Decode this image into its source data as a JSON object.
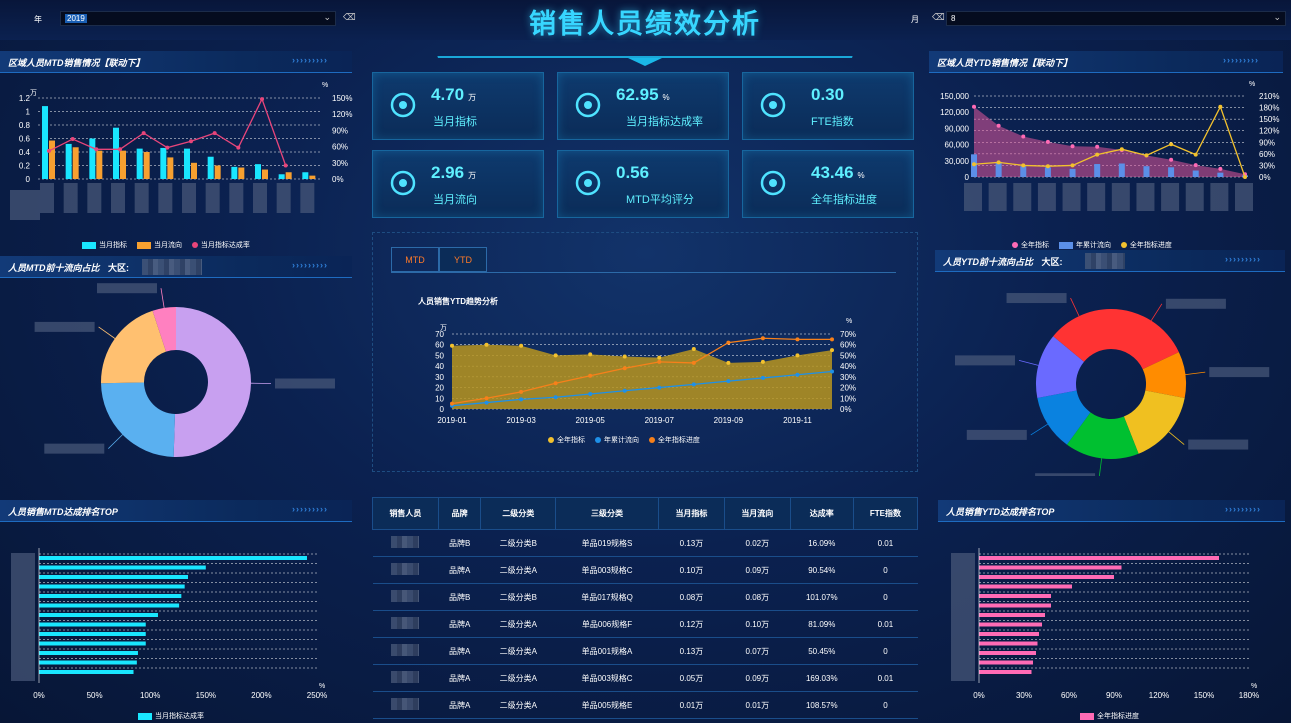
{
  "header": {
    "title": "销售人员绩效分析",
    "year_label": "年",
    "year_value": "2019",
    "month_label": "月",
    "month_value": "8"
  },
  "panels": {
    "left_mtd_region": "区域人员MTD销售情况【联动下】",
    "left_mtd_top10": "人员MTD前十流向占比",
    "left_mtd_top10_region": "大区:",
    "left_mtd_rank": "人员销售MTD达成排名TOP",
    "right_ytd_region": "区域人员YTD销售情况【联动下】",
    "right_ytd_top10": "人员YTD前十流向占比",
    "right_ytd_top10_region": "大区:",
    "right_ytd_rank": "人员销售YTD达成排名TOP",
    "arrows": "›››››››››"
  },
  "kpis": [
    {
      "value": "4.70",
      "unit": "万",
      "label": "当月指标",
      "icon": "clipboard-icon"
    },
    {
      "value": "62.95",
      "unit": "%",
      "label": "当月指标达成率",
      "icon": "percent-icon"
    },
    {
      "value": "0.30",
      "unit": "",
      "label": "FTE指数",
      "icon": "cube-icon"
    },
    {
      "value": "2.96",
      "unit": "万",
      "label": "当月流向",
      "icon": "bar-growth-icon"
    },
    {
      "value": "0.56",
      "unit": "",
      "label": "MTD平均评分",
      "icon": "molecule-icon"
    },
    {
      "value": "43.46",
      "unit": "%",
      "label": "全年指标进度",
      "icon": "atom-icon"
    }
  ],
  "tabs": {
    "mtd": "MTD",
    "ytd": "YTD"
  },
  "legends": {
    "mtd_bar": [
      "当月指标",
      "当月流向",
      "当月指标达成率"
    ],
    "ytd_bar": [
      "全年指标",
      "年累计流向",
      "全年指标进度"
    ],
    "trend": [
      "全年指标",
      "年累计流向",
      "全年指标进度"
    ],
    "mtd_rank": "当月指标达成率",
    "ytd_rank": "全年指标进度"
  },
  "colors": {
    "cyan": "#19e6ff",
    "orange": "#f7a030",
    "pink": "#e8457a",
    "gold": "#f2c12e",
    "blue": "#1e90e8",
    "magenta": "#ff6bb5",
    "accent": "#37d6ff"
  },
  "table": {
    "columns": [
      "销售人员",
      "品牌",
      "二级分类",
      "三级分类",
      "当月指标",
      "当月流向",
      "达成率",
      "FTE指数"
    ],
    "rows": [
      [
        "",
        "品牌B",
        "二级分类B",
        "单品019规格S",
        "0.13万",
        "0.02万",
        "16.09%",
        "0.01"
      ],
      [
        "",
        "品牌A",
        "二级分类A",
        "单品003规格C",
        "0.10万",
        "0.09万",
        "90.54%",
        "0"
      ],
      [
        "",
        "品牌B",
        "二级分类B",
        "单品017规格Q",
        "0.08万",
        "0.08万",
        "101.07%",
        "0"
      ],
      [
        "",
        "品牌A",
        "二级分类A",
        "单品006规格F",
        "0.12万",
        "0.10万",
        "81.09%",
        "0.01"
      ],
      [
        "",
        "品牌A",
        "二级分类A",
        "单品001规格A",
        "0.13万",
        "0.07万",
        "50.45%",
        "0"
      ],
      [
        "",
        "品牌A",
        "二级分类A",
        "单品003规格C",
        "0.05万",
        "0.09万",
        "169.03%",
        "0.01"
      ],
      [
        "",
        "品牌A",
        "二级分类A",
        "单品005规格E",
        "0.01万",
        "0.01万",
        "108.57%",
        "0"
      ]
    ]
  },
  "chart_data": [
    {
      "id": "mtd-region",
      "type": "bar",
      "ylabel_left": "万",
      "ylabel_right": "%",
      "y_ticks": [
        "0",
        "0.2",
        "0.4",
        "0.6",
        "0.8",
        "1",
        "1.2"
      ],
      "y2_ticks": [
        "0%",
        "30%",
        "60%",
        "90%",
        "120%",
        "150%"
      ],
      "series": [
        {
          "name": "当月指标",
          "values": [
            1.08,
            0.52,
            0.6,
            0.76,
            0.45,
            0.46,
            0.45,
            0.33,
            0.18,
            0.22,
            0.07,
            0.1
          ]
        },
        {
          "name": "当月流向",
          "values": [
            0.57,
            0.47,
            0.42,
            0.42,
            0.4,
            0.32,
            0.24,
            0.2,
            0.17,
            0.14,
            0.1,
            0.05
          ]
        },
        {
          "name": "当月指标达成率",
          "values": [
            52,
            74,
            55,
            55,
            85,
            58,
            70,
            85,
            58,
            148,
            25,
            null
          ]
        }
      ]
    },
    {
      "id": "ytd-region",
      "type": "bar",
      "y_ticks": [
        "0",
        "30,000",
        "60,000",
        "90,000",
        "120,000",
        "150,000"
      ],
      "y2_ticks": [
        "0%",
        "30%",
        "60%",
        "90%",
        "120%",
        "150%",
        "180%",
        "210%"
      ],
      "ylabel_right": "%",
      "series": [
        {
          "name": "全年指标",
          "values": [
            130000,
            95000,
            75000,
            65000,
            57000,
            56000,
            50000,
            40000,
            32000,
            22000,
            15000,
            5000
          ]
        },
        {
          "name": "年累计流向",
          "values": [
            42000,
            28000,
            20000,
            18000,
            15000,
            24000,
            25000,
            20000,
            18000,
            12000,
            8000,
            3000
          ]
        },
        {
          "name": "全年指标进度",
          "values": [
            33,
            38,
            30,
            28,
            30,
            58,
            72,
            56,
            85,
            58,
            182,
            0
          ]
        }
      ]
    },
    {
      "id": "ytd-trend",
      "type": "line",
      "title": "人员销售YTD趋势分析",
      "ylabel_left": "万",
      "ylabel_right": "%",
      "x": [
        "2019-01",
        "2019-02",
        "2019-03",
        "2019-04",
        "2019-05",
        "2019-06",
        "2019-07",
        "2019-08",
        "2019-09",
        "2019-10",
        "2019-11",
        "2019-12"
      ],
      "x_ticks": [
        "2019-01",
        "2019-03",
        "2019-05",
        "2019-07",
        "2019-09",
        "2019-11"
      ],
      "y_ticks": [
        "0",
        "10",
        "20",
        "30",
        "40",
        "50",
        "60",
        "70"
      ],
      "y2_ticks": [
        "0%",
        "10%",
        "20%",
        "30%",
        "40%",
        "50%",
        "60%",
        "70%"
      ],
      "series": [
        {
          "name": "全年指标",
          "values": [
            59,
            60,
            59,
            50,
            51,
            49,
            48,
            56,
            43,
            44,
            50,
            55
          ]
        },
        {
          "name": "年累计流向",
          "values": [
            3,
            6,
            9,
            11,
            14,
            17,
            20,
            23,
            26,
            29,
            32,
            35
          ]
        },
        {
          "name": "全年指标进度",
          "percent": [
            5,
            10,
            16,
            24,
            31,
            38,
            44,
            43,
            62,
            66,
            65,
            65
          ]
        }
      ]
    },
    {
      "id": "mtd-pie",
      "type": "pie",
      "values": [
        50,
        24,
        20,
        5
      ],
      "colors": [
        "#c8a0f0",
        "#5ab0f0",
        "#ffc070",
        "#ff80c0"
      ]
    },
    {
      "id": "ytd-pie",
      "type": "pie",
      "values": [
        18,
        10,
        16,
        16,
        12,
        14,
        14
      ],
      "colors": [
        "#ff3333",
        "#ff8c00",
        "#f0c020",
        "#00c030",
        "#0a82e0",
        "#6a6aff",
        "#ff3333"
      ]
    },
    {
      "id": "mtd-rank",
      "type": "bar",
      "x_ticks": [
        "0%",
        "50%",
        "100%",
        "150%",
        "200%",
        "250%"
      ],
      "xlabel": "%",
      "values": [
        241,
        150,
        134,
        131,
        128,
        126,
        107,
        96,
        96,
        96,
        89,
        88,
        85
      ]
    },
    {
      "id": "ytd-rank",
      "type": "bar",
      "x_ticks": [
        "0%",
        "30%",
        "60%",
        "90%",
        "120%",
        "150%",
        "180%"
      ],
      "xlabel": "%",
      "values": [
        160,
        95,
        90,
        62,
        48,
        48,
        44,
        42,
        40,
        39,
        38,
        36,
        35
      ]
    }
  ]
}
